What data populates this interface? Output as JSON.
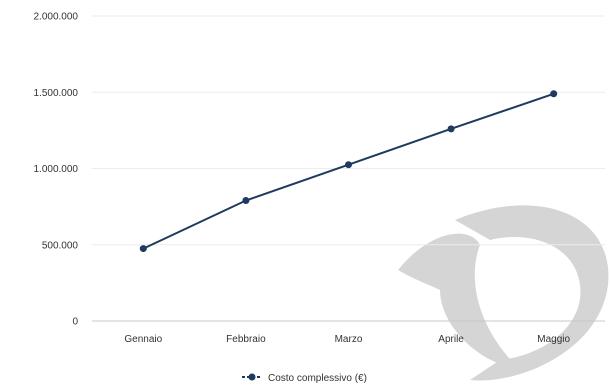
{
  "chart_data": {
    "type": "line",
    "categories": [
      "Gennaio",
      "Febbraio",
      "Marzo",
      "Aprile",
      "Maggio"
    ],
    "series": [
      {
        "name": "Costo complessivo (€)",
        "values": [
          475000,
          790000,
          1025000,
          1260000,
          1490000
        ],
        "color": "#1f3a5f"
      }
    ],
    "ylim": [
      0,
      2000000
    ],
    "y_ticks": [
      "0",
      "500.000",
      "1.000.000",
      "1.500.000",
      "2.000.000"
    ],
    "grid": true,
    "legend": "bottom-center",
    "watermark": "D-logo-watermark"
  }
}
